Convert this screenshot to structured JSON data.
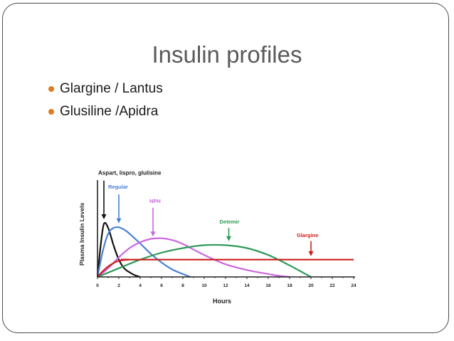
{
  "slide": {
    "title": "Insulin profiles",
    "bullets": [
      "Glargine / Lantus",
      "Glusiline /Apidra"
    ]
  },
  "colors": {
    "bullet": "#e07b22",
    "rapid": "#111111",
    "regular": "#4a7fd4",
    "nph": "#cc66e0",
    "detemir": "#2e9a57",
    "glargine": "#cc1f1f"
  },
  "chart_data": {
    "type": "line",
    "xlabel": "Hours",
    "ylabel": "Plasma Insulin Levels",
    "xlim": [
      0,
      24
    ],
    "ylim": [
      0,
      1
    ],
    "xticks": [
      0,
      2,
      4,
      6,
      8,
      10,
      12,
      14,
      16,
      18,
      20,
      22,
      24
    ],
    "grid": false,
    "series": [
      {
        "name": "Aspart, lispro, glulisine",
        "color": "#111111",
        "x": [
          0,
          0.3,
          0.6,
          1,
          1.5,
          2,
          2.5,
          3,
          3.5,
          4
        ],
        "y": [
          0,
          0.55,
          0.92,
          0.85,
          0.55,
          0.3,
          0.15,
          0.08,
          0.03,
          0
        ]
      },
      {
        "name": "Regular",
        "color": "#4a7fd4",
        "x": [
          0,
          0.5,
          1,
          1.5,
          2,
          2.5,
          3,
          4,
          5,
          6,
          7,
          8,
          8.7
        ],
        "y": [
          0,
          0.45,
          0.75,
          0.85,
          0.86,
          0.82,
          0.75,
          0.58,
          0.4,
          0.25,
          0.13,
          0.05,
          0
        ]
      },
      {
        "name": "NPH",
        "color": "#cc66e0",
        "x": [
          0,
          1,
          2,
          3,
          4,
          5,
          6,
          7,
          8,
          10,
          12,
          14,
          16,
          17,
          18
        ],
        "y": [
          0,
          0.15,
          0.34,
          0.5,
          0.6,
          0.66,
          0.67,
          0.64,
          0.57,
          0.38,
          0.22,
          0.12,
          0.05,
          0.02,
          0
        ]
      },
      {
        "name": "Detemir",
        "color": "#2e9a57",
        "x": [
          0,
          2,
          4,
          6,
          8,
          10,
          12,
          14,
          16,
          18,
          19,
          20
        ],
        "y": [
          0,
          0.15,
          0.3,
          0.42,
          0.5,
          0.55,
          0.55,
          0.5,
          0.38,
          0.2,
          0.1,
          0
        ]
      },
      {
        "name": "Glargine",
        "color": "#cc1f1f",
        "x": [
          0,
          0.5,
          1,
          1.5,
          2,
          3,
          4,
          24
        ],
        "y": [
          0,
          0.1,
          0.18,
          0.24,
          0.28,
          0.3,
          0.3,
          0.3
        ]
      }
    ],
    "annotations": [
      {
        "text": "Aspart, lispro, glulisine",
        "series": 0,
        "arrow_x": 0.6,
        "arrow_top": 1.67,
        "arrow_bottom": 1.0
      },
      {
        "text": "Regular",
        "series": 1,
        "arrow_x": 2.0,
        "arrow_top": 1.43,
        "arrow_bottom": 0.93
      },
      {
        "text": "NPH",
        "series": 2,
        "arrow_x": 5.2,
        "arrow_top": 1.2,
        "arrow_bottom": 0.7
      },
      {
        "text": "Detemir",
        "series": 3,
        "arrow_x": 12.3,
        "arrow_top": 0.85,
        "arrow_bottom": 0.62
      },
      {
        "text": "Glargine",
        "series": 4,
        "arrow_x": 20.0,
        "arrow_top": 0.62,
        "arrow_bottom": 0.36
      }
    ]
  }
}
